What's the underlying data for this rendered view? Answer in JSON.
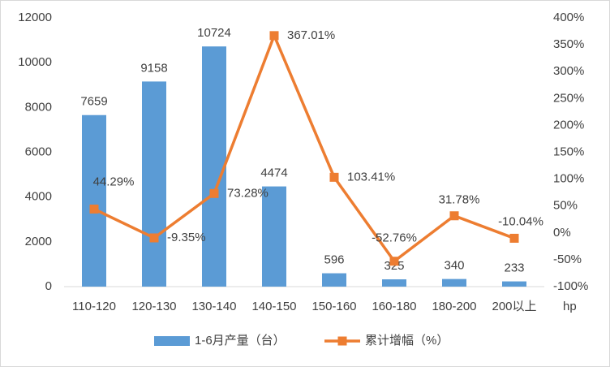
{
  "chart_data": {
    "type": "bar",
    "categories": [
      "110-120",
      "120-130",
      "130-140",
      "140-150",
      "150-160",
      "160-180",
      "180-200",
      "200以上"
    ],
    "x_label": "hp",
    "series": [
      {
        "name": "1-6月产量（台）",
        "type": "bar",
        "color": "#5b9bd5",
        "axis": "y",
        "values": [
          7659,
          9158,
          10724,
          4474,
          596,
          325,
          340,
          233
        ]
      },
      {
        "name": "累计增幅（%）",
        "type": "line",
        "color": "#ed7d31",
        "axis": "y2",
        "values": [
          44.29,
          -9.35,
          73.28,
          367.01,
          103.41,
          -52.76,
          31.78,
          -10.04
        ],
        "value_labels": [
          "44.29%",
          "-9.35%",
          "73.28%",
          "367.01%",
          "103.41%",
          "-52.76%",
          "31.78%",
          "-10.04%"
        ]
      }
    ],
    "ylim": [
      0,
      12000
    ],
    "yticks": [
      0,
      2000,
      4000,
      6000,
      8000,
      10000,
      12000
    ],
    "y2lim": [
      -100,
      400
    ],
    "y2ticks": [
      {
        "value": -100,
        "label": "-100%"
      },
      {
        "value": -50,
        "label": "-50%"
      },
      {
        "value": 0,
        "label": "0%"
      },
      {
        "value": 50,
        "label": "50%"
      },
      {
        "value": 100,
        "label": "100%"
      },
      {
        "value": 150,
        "label": "150%"
      },
      {
        "value": 200,
        "label": "200%"
      },
      {
        "value": 250,
        "label": "250%"
      },
      {
        "value": 300,
        "label": "300%"
      },
      {
        "value": 350,
        "label": "350%"
      },
      {
        "value": 400,
        "label": "400%"
      }
    ],
    "grid": false,
    "legend": "bottom"
  }
}
